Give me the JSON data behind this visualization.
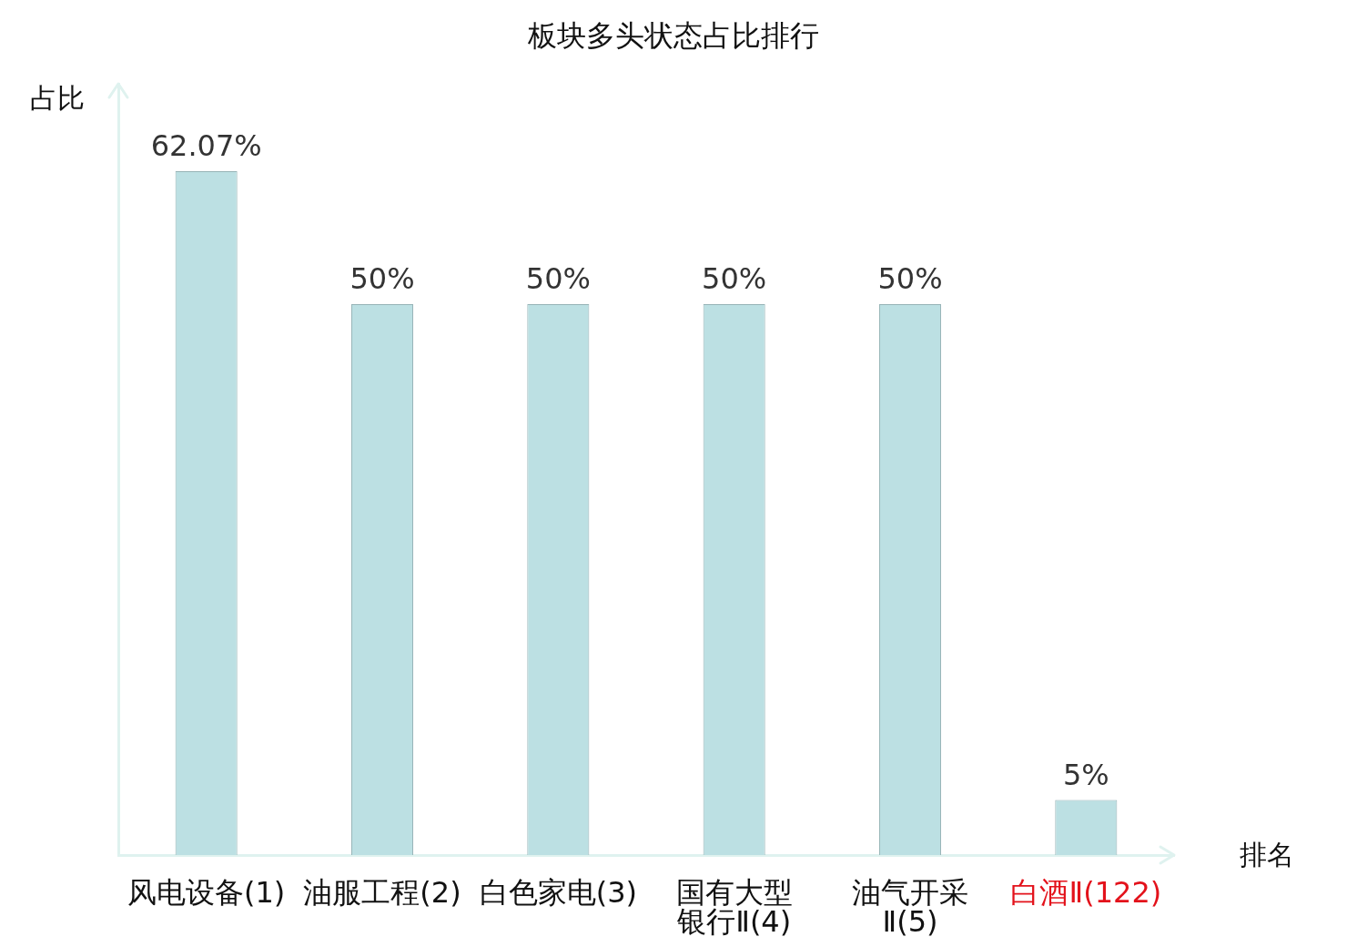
{
  "chart_data": {
    "type": "bar",
    "title": "板块多头状态占比排行",
    "xlabel": "排名",
    "ylabel": "占比",
    "categories": [
      "风电设备(1)",
      "油服工程(2)",
      "白色家电(3)",
      "国有大型银行Ⅱ(4)",
      "油气开采Ⅱ(5)",
      "白酒Ⅱ(122)"
    ],
    "values": [
      62.07,
      50,
      50,
      50,
      50,
      5
    ],
    "color": "#bce0e3",
    "value_labels": [
      "62.07%",
      "50%",
      "50%",
      "50%",
      "50%",
      "5%"
    ],
    "ylim": [
      0,
      70
    ],
    "tick_labels": "x",
    "grid": false,
    "legend": false
  }
}
